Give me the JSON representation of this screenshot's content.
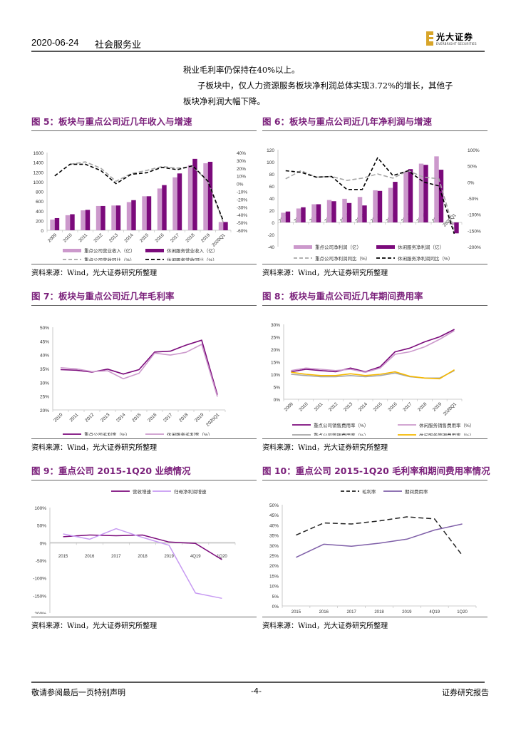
{
  "header": {
    "date": "2020-06-24",
    "industry": "社会服务业",
    "logo_text": "光大证券",
    "logo_sub": "EVERBRIGHT SECURITIES"
  },
  "body_text": {
    "line1": "税业毛利率仍保持在40%以上。",
    "line2": "子板块中，仅人力资源服务板块净利润总体实现3.72%的增长，其他子",
    "line3": "板块净利润大幅下降。"
  },
  "source_label": "资料来源：Wind，光大证券研究所整理",
  "colors": {
    "title_purple": "#7a1f7a",
    "dark_purple": "#7b0a7b",
    "light_purple": "#cc99cc",
    "lavender": "#c79af2",
    "gray": "#a6a6a6",
    "yellow": "#f5b800",
    "slate_purple": "#7f5fa8"
  },
  "footer": {
    "left": "敬请参阅最后一页特别声明",
    "center": "-4-",
    "right": "证券研究报告"
  },
  "chart_data": [
    {
      "id": "fig5",
      "type": "bar",
      "title": "图 5：板块与重点公司近几年收入与增速",
      "categories": [
        "2009",
        "2010",
        "2011",
        "2012",
        "2013",
        "2014",
        "2015",
        "2016",
        "2017",
        "2018",
        "2019",
        "2020Q1"
      ],
      "ylim": [
        0,
        1600
      ],
      "yticks": [
        "0",
        "200",
        "400",
        "600",
        "800",
        "1000",
        "1200",
        "1400",
        "1600"
      ],
      "ylim_right": [
        -60,
        40
      ],
      "yticks_right": [
        "-60%",
        "-50%",
        "-40%",
        "-30%",
        "-20%",
        "-10%",
        "0%",
        "10%",
        "20%",
        "30%",
        "40%"
      ],
      "series": [
        {
          "name": "重点公司营业收入（亿）",
          "kind": "bar",
          "color": "#cc99cc",
          "values": [
            220,
            310,
            410,
            500,
            510,
            580,
            700,
            860,
            1090,
            1340,
            1380,
            170
          ]
        },
        {
          "name": "休闲服务营业收入（亿）",
          "kind": "bar",
          "color": "#7b0a7b",
          "values": [
            250,
            330,
            420,
            500,
            510,
            620,
            700,
            930,
            1170,
            1470,
            1410,
            170
          ]
        },
        {
          "name": "重点公司营收同比（%）",
          "kind": "line-dash-gray",
          "axis": "right",
          "color": "#a6a6a6",
          "values": [
            null,
            25,
            28,
            20,
            3,
            13,
            17,
            22,
            20,
            22,
            3,
            -50
          ]
        },
        {
          "name": "休闲服务营收同比（%）",
          "kind": "line-dash-black",
          "axis": "right",
          "color": "#000000",
          "values": [
            10,
            25,
            25,
            17,
            0,
            12,
            14,
            21,
            18,
            23,
            3,
            -48
          ]
        }
      ]
    },
    {
      "id": "fig6",
      "type": "bar",
      "title": "图 6：板块与重点公司近几年净利润与增速",
      "categories": [
        "2009",
        "2010",
        "2011",
        "2012",
        "2013",
        "2014",
        "2015",
        "2016",
        "2017",
        "2018",
        "2019",
        "2020Q1"
      ],
      "ylim": [
        -40,
        120
      ],
      "yticks": [
        "-40",
        "-20",
        "0",
        "20",
        "40",
        "60",
        "80",
        "100",
        "120"
      ],
      "ylim_right": [
        -200,
        100
      ],
      "yticks_right": [
        "-200%",
        "-150%",
        "-100%",
        "-50%",
        "0%",
        "50%",
        "100%"
      ],
      "series": [
        {
          "name": "重点公司净利润（亿）",
          "kind": "bar",
          "color": "#cc99cc",
          "values": [
            16,
            23,
            30,
            37,
            39,
            42,
            53,
            57,
            84,
            97,
            109,
            -4
          ]
        },
        {
          "name": "休闲服务净利润（亿）",
          "kind": "bar",
          "color": "#7b0a7b",
          "values": [
            18,
            25,
            30,
            35,
            32,
            28,
            52,
            67,
            88,
            95,
            87,
            -18
          ]
        },
        {
          "name": "重点公司净利润同比（%）",
          "kind": "line-dash-gray",
          "axis": "right",
          "color": "#a6a6a6",
          "values": [
            10,
            35,
            15,
            17,
            5,
            12,
            25,
            12,
            35,
            15,
            10,
            -150
          ]
        },
        {
          "name": "休闲服务净利润同比（%）",
          "kind": "line-dash-black",
          "axis": "right",
          "color": "#000000",
          "values": [
            35,
            30,
            15,
            17,
            -23,
            -23,
            75,
            20,
            35,
            0,
            -12,
            -160
          ]
        }
      ]
    },
    {
      "id": "fig7",
      "type": "line",
      "title": "图 7：板块与重点公司近几年毛利率",
      "categories": [
        "2010",
        "2011",
        "2012",
        "2013",
        "2014",
        "2015",
        "2016",
        "2017",
        "2018",
        "2019",
        "2020Q1"
      ],
      "ylim": [
        20,
        50
      ],
      "yticks": [
        "20%",
        "25%",
        "30%",
        "35%",
        "40%",
        "45%",
        "50%"
      ],
      "series": [
        {
          "name": "重点公司毛利率（%）",
          "color": "#7b0a7b",
          "values": [
            34.6,
            34.4,
            33.7,
            34.8,
            33.0,
            34.6,
            41.0,
            41.3,
            43.5,
            45.3,
            25.5
          ]
        },
        {
          "name": "休闲服务毛利率（%）",
          "color": "#cc99cc",
          "values": [
            35.3,
            34.9,
            33.9,
            34.2,
            31.3,
            33.3,
            40.6,
            39.9,
            40.9,
            43.8,
            24.8
          ]
        }
      ]
    },
    {
      "id": "fig8",
      "type": "line",
      "title": "图 8：板块与重点公司近几年期间费用率",
      "categories": [
        "2009",
        "2010",
        "2011",
        "2012",
        "2013",
        "2014",
        "2015",
        "2016",
        "2017",
        "2018",
        "2019",
        "2020Q1"
      ],
      "ylim": [
        0,
        30
      ],
      "yticks": [
        "0%",
        "5%",
        "10%",
        "15%",
        "20%",
        "25%",
        "30%"
      ],
      "series": [
        {
          "name": "重点公司销售费用率（%）",
          "color": "#7b0a7b",
          "values": [
            11,
            12,
            11.5,
            11,
            12.5,
            11,
            13,
            19,
            20.5,
            23,
            25,
            28
          ]
        },
        {
          "name": "休闲服务销售费用率（%）",
          "color": "#cc99cc",
          "values": [
            11.5,
            12.5,
            12,
            11.5,
            12,
            10.8,
            12.5,
            18,
            19,
            21,
            24,
            27.5
          ]
        },
        {
          "name": "重点公司管理费用率（%）",
          "color": "#a6a6a6",
          "values": [
            10,
            9.5,
            9,
            9,
            9.5,
            9,
            9.5,
            10.5,
            9,
            8.5,
            8.5,
            11.5
          ]
        },
        {
          "name": "休闲服务管理费用率（%）",
          "color": "#f5b800",
          "values": [
            10.8,
            10,
            9.5,
            9.5,
            10.2,
            9.5,
            10,
            11,
            9.2,
            8.5,
            8.2,
            11.8
          ]
        }
      ]
    },
    {
      "id": "fig9",
      "type": "line",
      "title": "图 9：重点公司 2015-1Q20 业绩情况",
      "categories": [
        "2015",
        "2016",
        "2017",
        "2018",
        "2019",
        "4Q19",
        "1Q20"
      ],
      "ylim": [
        -200,
        100
      ],
      "yticks": [
        "-200%",
        "-150%",
        "-100%",
        "-50%",
        "0%",
        "50%",
        "100%"
      ],
      "legend_position": "top",
      "series": [
        {
          "name": "营收增速",
          "color": "#7b0a7b",
          "values": [
            17,
            22,
            20,
            22,
            2,
            -2,
            -48
          ]
        },
        {
          "name": "归母净利润增速",
          "color": "#c79af2",
          "values": [
            25,
            10,
            40,
            15,
            -7,
            -143,
            -158
          ]
        }
      ]
    },
    {
      "id": "fig10",
      "type": "line",
      "title": "图 10：重点公司 2015-1Q20 毛利率和期间费用率情况",
      "categories": [
        "2015",
        "2016",
        "2017",
        "2018",
        "2019",
        "4Q19",
        "1Q20"
      ],
      "ylim": [
        0,
        50
      ],
      "yticks": [
        "0%",
        "5%",
        "10%",
        "15%",
        "20%",
        "25%",
        "30%",
        "35%",
        "40%",
        "45%",
        "50%"
      ],
      "legend_position": "top",
      "series": [
        {
          "name": "毛利率",
          "color": "#222222",
          "dash": true,
          "values": [
            35,
            41,
            40.5,
            42,
            44,
            43,
            25
          ]
        },
        {
          "name": "期间费用率",
          "color": "#7f5fa8",
          "values": [
            24,
            30.5,
            29.5,
            31,
            33,
            37.5,
            40.5
          ]
        }
      ]
    }
  ]
}
